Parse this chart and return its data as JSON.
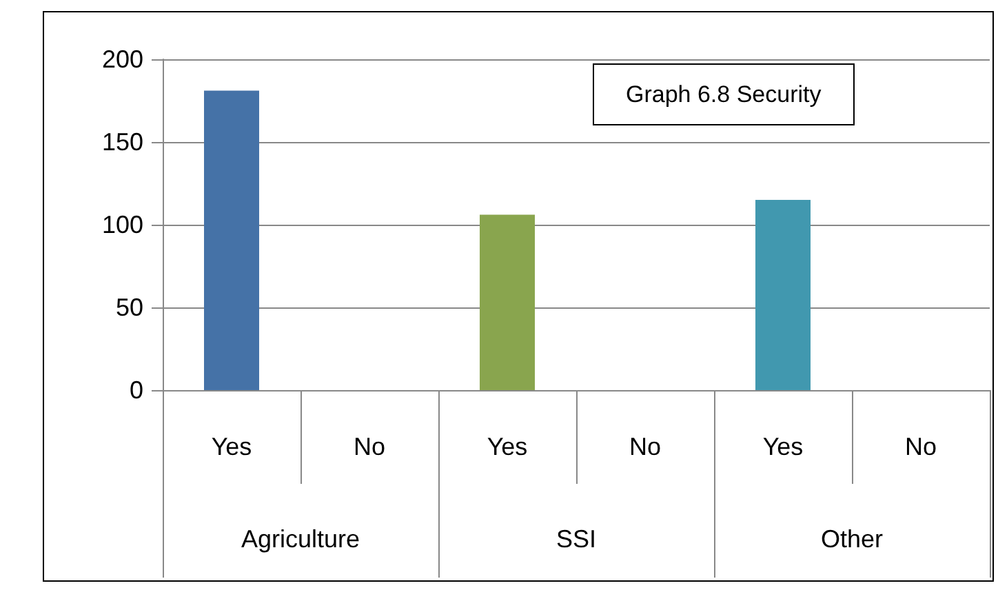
{
  "chart_data": {
    "type": "bar",
    "title": "Graph 6.8 Security",
    "categories": [
      "Yes",
      "No",
      "Yes",
      "No",
      "Yes",
      "No"
    ],
    "values": [
      181,
      0,
      106,
      0,
      115,
      0
    ],
    "colors": [
      "#4572a7",
      "#4572a7",
      "#89a54e",
      "#89a54e",
      "#4198af",
      "#4198af"
    ],
    "annotations": [
      "Agriculture",
      "SSI",
      "Other"
    ],
    "ylim": [
      0,
      200
    ],
    "yticks": [
      0,
      50,
      100,
      150,
      200
    ],
    "grid": "y"
  }
}
